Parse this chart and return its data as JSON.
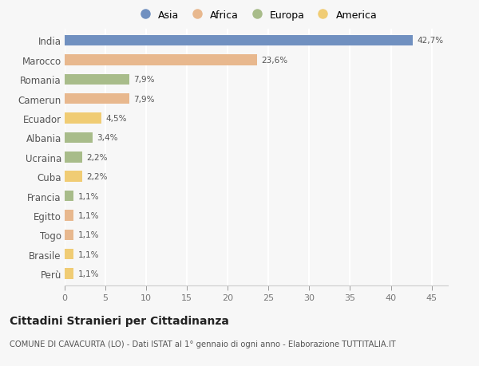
{
  "countries": [
    "India",
    "Marocco",
    "Romania",
    "Camerun",
    "Ecuador",
    "Albania",
    "Ucraina",
    "Cuba",
    "Francia",
    "Egitto",
    "Togo",
    "Brasile",
    "Perù"
  ],
  "values": [
    42.7,
    23.6,
    7.9,
    7.9,
    4.5,
    3.4,
    2.2,
    2.2,
    1.1,
    1.1,
    1.1,
    1.1,
    1.1
  ],
  "labels": [
    "42,7%",
    "23,6%",
    "7,9%",
    "7,9%",
    "4,5%",
    "3,4%",
    "2,2%",
    "2,2%",
    "1,1%",
    "1,1%",
    "1,1%",
    "1,1%",
    "1,1%"
  ],
  "continents": [
    "Asia",
    "Africa",
    "Europa",
    "Africa",
    "America",
    "Europa",
    "Europa",
    "America",
    "Europa",
    "Africa",
    "Africa",
    "America",
    "America"
  ],
  "continent_colors": {
    "Asia": "#7090c0",
    "Africa": "#e8b88e",
    "Europa": "#a8bc8a",
    "America": "#f0cc74"
  },
  "legend_order": [
    "Asia",
    "Africa",
    "Europa",
    "America"
  ],
  "title": "Cittadini Stranieri per Cittadinanza",
  "subtitle": "COMUNE DI CAVACURTA (LO) - Dati ISTAT al 1° gennaio di ogni anno - Elaborazione TUTTITALIA.IT",
  "xlim": [
    0,
    47
  ],
  "xticks": [
    0,
    5,
    10,
    15,
    20,
    25,
    30,
    35,
    40,
    45
  ],
  "background_color": "#f7f7f7",
  "grid_color": "#ffffff",
  "bar_height": 0.55
}
